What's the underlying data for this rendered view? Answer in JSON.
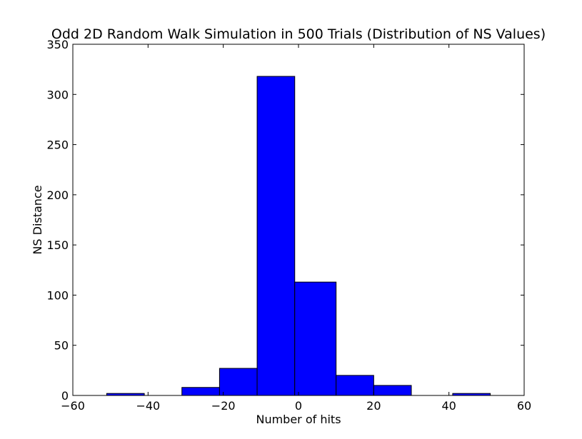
{
  "chart_data": {
    "type": "bar",
    "title": "Odd 2D Random Walk Simulation in 500 Trials (Distribution of NS Values)",
    "xlabel": "Number of hits",
    "ylabel": "NS Distance",
    "xlim": [
      -60,
      60
    ],
    "ylim": [
      0,
      350
    ],
    "xticks": [
      -60,
      -40,
      -20,
      0,
      20,
      40,
      60
    ],
    "xtick_labels": [
      "−60",
      "−40",
      "−20",
      "0",
      "20",
      "40",
      "60"
    ],
    "yticks": [
      0,
      50,
      100,
      150,
      200,
      250,
      300,
      350
    ],
    "ytick_labels": [
      "0",
      "50",
      "100",
      "150",
      "200",
      "250",
      "300",
      "350"
    ],
    "bins": [
      {
        "x0": -51,
        "x1": -41,
        "value": 2
      },
      {
        "x0": -41,
        "x1": -31,
        "value": 0
      },
      {
        "x0": -31,
        "x1": -21,
        "value": 8
      },
      {
        "x0": -21,
        "x1": -11,
        "value": 27
      },
      {
        "x0": -11,
        "x1": -1,
        "value": 318
      },
      {
        "x0": -1,
        "x1": 10,
        "value": 113
      },
      {
        "x0": 10,
        "x1": 20,
        "value": 20
      },
      {
        "x0": 20,
        "x1": 30,
        "value": 10
      },
      {
        "x0": 30,
        "x1": 41,
        "value": 0
      },
      {
        "x0": 41,
        "x1": 51,
        "value": 2
      }
    ],
    "bar_color": "#0000ff",
    "edge_color": "#000000",
    "grid": false,
    "legend": "none"
  }
}
